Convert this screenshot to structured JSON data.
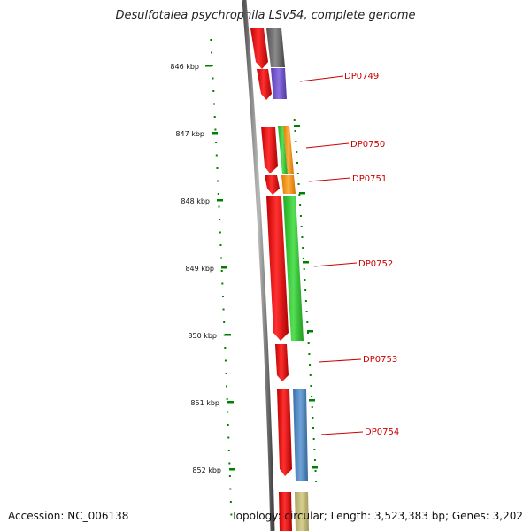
{
  "title": "Desulfotalea psychrophila LSv54, complete genome",
  "footer": {
    "accession": "Accession: NC_006138",
    "topology": "Topology: circular; Length: 3,523,383 bp; Genes: 3,202"
  },
  "ruler": {
    "labels": [
      "846 kbp",
      "847 kbp",
      "848 kbp",
      "849 kbp",
      "850 kbp",
      "851 kbp",
      "852 kbp"
    ]
  },
  "genes": [
    {
      "label": "DP0749",
      "color": "#8060d0"
    },
    {
      "label": "DP0750",
      "color": "#ff9a10"
    },
    {
      "label": "DP0751",
      "color": "#ff9a10"
    },
    {
      "label": "DP0752",
      "color": "#33cc33"
    },
    {
      "label": "DP0753",
      "color": ""
    },
    {
      "label": "DP0754",
      "color": "#5590c8"
    }
  ],
  "colors": {
    "label_text": "#cc0000",
    "tick_green": "#008000",
    "forward_strand": "#ee0000",
    "backbone": "#888888"
  }
}
